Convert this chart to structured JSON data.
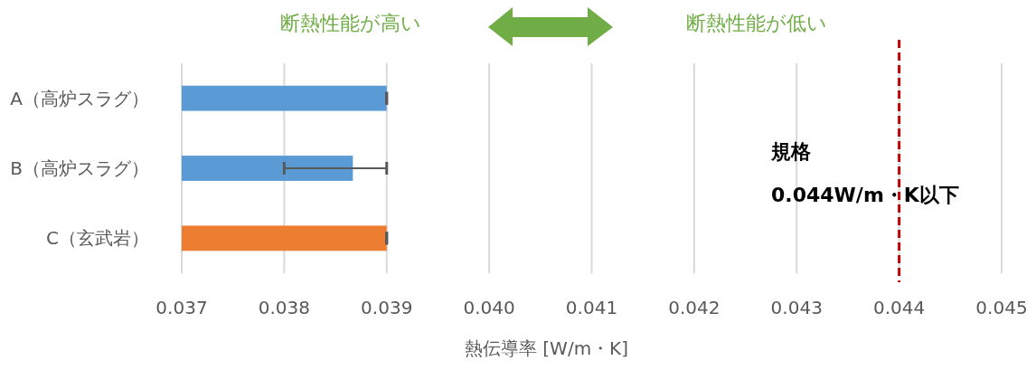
{
  "chart_data": {
    "type": "bar",
    "orientation": "horizontal",
    "xlabel": "熱伝導率 [W/m・K]",
    "categories": [
      "A（高炉スラグ）",
      "B（高炉スラグ）",
      "C（玄武岩）"
    ],
    "values": [
      0.039,
      0.03867,
      0.039
    ],
    "colors": [
      "#5b9bd5",
      "#5b9bd5",
      "#ed7d31"
    ],
    "errors": [
      0,
      [
        0.038,
        0.039
      ],
      0
    ],
    "xlim": [
      0.037,
      0.045
    ],
    "xticks": [
      {
        "value": 0.037,
        "label": "0.037"
      },
      {
        "value": 0.038,
        "label": "0.038"
      },
      {
        "value": 0.039,
        "label": "0.039"
      },
      {
        "value": 0.04,
        "label": "0.040"
      },
      {
        "value": 0.041,
        "label": "0.041"
      },
      {
        "value": 0.042,
        "label": "0.042"
      },
      {
        "value": 0.043,
        "label": "0.043"
      },
      {
        "value": 0.044,
        "label": "0.044"
      },
      {
        "value": 0.045,
        "label": "0.045"
      }
    ],
    "grid": "x",
    "ref_lines": [
      {
        "axis": "x",
        "value": 0.044,
        "label": "規格\n0.044W/m・K以下",
        "color": "#c00000",
        "line_style": "dashed"
      }
    ],
    "annotations": [
      "断熱性能が高い",
      "断熱性能が低い"
    ]
  }
}
